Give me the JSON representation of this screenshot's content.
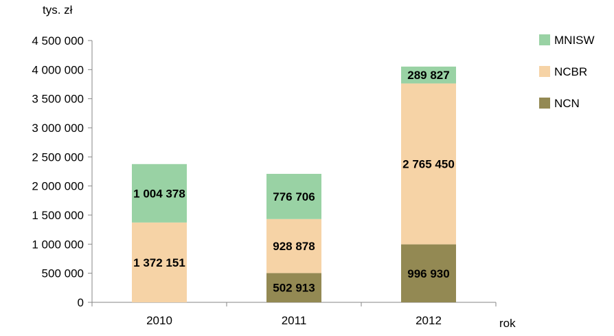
{
  "chart_data": {
    "type": "bar",
    "stacked": true,
    "y_unit_label": "tys. zł",
    "xlabel": "rok",
    "categories": [
      "2010",
      "2011",
      "2012"
    ],
    "series": [
      {
        "name": "NCN",
        "color": "#938953",
        "values": [
          0,
          502913,
          996930
        ],
        "labels": [
          "",
          "502 913",
          "996 930"
        ]
      },
      {
        "name": "NCBR",
        "color": "#F6D3A6",
        "values": [
          1372151,
          928878,
          2765450
        ],
        "labels": [
          "1 372 151",
          "928 878",
          "2 765 450"
        ]
      },
      {
        "name": "MNISW",
        "color": "#99D2A4",
        "values": [
          1004378,
          776706,
          289827
        ],
        "labels": [
          "1 004 378",
          "776 706",
          "289 827"
        ]
      }
    ],
    "ylim": [
      0,
      4500000
    ],
    "yticks": [
      0,
      500000,
      1000000,
      1500000,
      2000000,
      2500000,
      3000000,
      3500000,
      4000000,
      4500000
    ],
    "ytick_labels": [
      "0",
      "500 000",
      "1 000 000",
      "1 500 000",
      "2 000 000",
      "2 500 000",
      "3 000 000",
      "3 500 000",
      "4 000 000",
      "4 500 000"
    ],
    "legend": {
      "placement": "right",
      "order": [
        "MNISW",
        "NCBR",
        "NCN"
      ]
    },
    "grid": false
  }
}
